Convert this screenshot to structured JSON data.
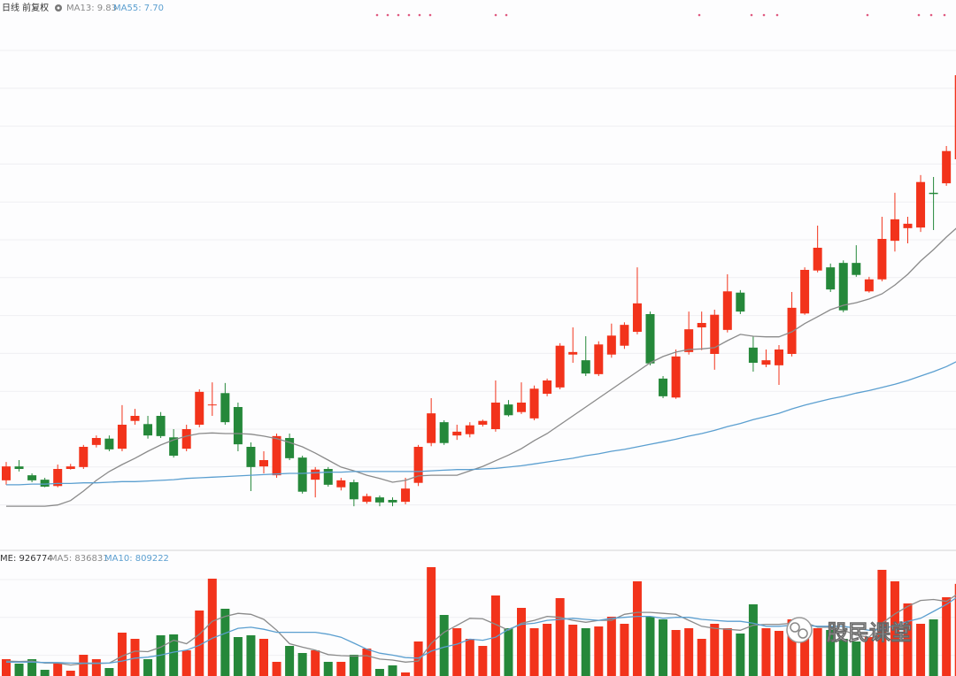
{
  "chart_data": [
    {
      "type": "candlestick",
      "title": "日线 前复权",
      "up_color": "#f2331b",
      "down_color": "#25883a",
      "ylim": [
        4.72,
        13.4
      ],
      "open": [
        5.8,
        6.02,
        5.88,
        5.81,
        5.71,
        5.98,
        6.01,
        6.36,
        6.46,
        6.3,
        6.74,
        6.69,
        6.82,
        6.48,
        6.3,
        6.68,
        6.99,
        7.18,
        6.96,
        6.33,
        6.02,
        5.88,
        6.47,
        6.16,
        5.81,
        5.98,
        5.69,
        5.77,
        5.46,
        5.53,
        5.49,
        5.46,
        5.76,
        6.39,
        6.72,
        6.51,
        6.53,
        6.68,
        6.61,
        7.0,
        6.88,
        6.78,
        7.17,
        7.27,
        7.79,
        7.7,
        7.48,
        7.79,
        7.93,
        8.15,
        8.43,
        7.41,
        7.11,
        7.83,
        8.22,
        7.8,
        8.18,
        8.77,
        7.9,
        7.63,
        7.62,
        7.8,
        8.44,
        9.12,
        9.17,
        9.24,
        9.24,
        8.79,
        8.98,
        9.59,
        9.79,
        9.8,
        10.35,
        10.5,
        10.88
      ],
      "high": [
        6.09,
        6.12,
        5.91,
        5.84,
        6.05,
        6.06,
        6.36,
        6.51,
        6.51,
        6.99,
        6.93,
        6.82,
        6.88,
        6.61,
        6.68,
        7.24,
        7.35,
        7.34,
        7.03,
        6.4,
        6.26,
        6.54,
        6.54,
        6.19,
        6.01,
        6.01,
        5.84,
        5.81,
        5.59,
        5.56,
        5.53,
        5.84,
        6.36,
        7.1,
        6.75,
        6.68,
        6.72,
        6.76,
        7.38,
        7.07,
        7.35,
        7.3,
        7.41,
        7.97,
        8.22,
        8.08,
        8.0,
        8.28,
        8.3,
        9.17,
        8.47,
        7.45,
        7.87,
        8.47,
        8.47,
        8.5,
        9.06,
        8.81,
        8.08,
        7.87,
        7.94,
        8.78,
        9.17,
        9.83,
        9.23,
        9.28,
        9.52,
        9.02,
        9.97,
        10.35,
        9.97,
        10.63,
        10.6,
        11.09,
        12.28
      ],
      "low": [
        5.73,
        5.94,
        5.77,
        5.69,
        5.69,
        5.97,
        5.98,
        6.32,
        6.26,
        6.26,
        6.68,
        6.46,
        6.47,
        6.16,
        6.26,
        6.64,
        6.82,
        6.68,
        6.26,
        5.63,
        5.91,
        5.84,
        6.12,
        5.59,
        5.53,
        5.7,
        5.64,
        5.39,
        5.43,
        5.39,
        5.39,
        5.42,
        5.71,
        6.34,
        6.36,
        6.44,
        6.48,
        6.65,
        6.57,
        6.81,
        6.85,
        6.75,
        7.13,
        7.24,
        7.66,
        7.45,
        7.45,
        7.74,
        7.88,
        8.11,
        7.62,
        7.1,
        7.09,
        7.79,
        7.86,
        7.55,
        8.14,
        8.43,
        7.52,
        7.59,
        7.31,
        7.76,
        8.42,
        9.09,
        8.78,
        8.46,
        9.02,
        8.77,
        8.95,
        9.42,
        9.55,
        9.73,
        9.76,
        10.46,
        10.85
      ],
      "close": [
        6.02,
        5.98,
        5.8,
        5.7,
        5.98,
        6.02,
        6.33,
        6.47,
        6.29,
        6.68,
        6.82,
        6.51,
        6.5,
        6.19,
        6.61,
        7.2,
        7.0,
        6.72,
        6.37,
        6.01,
        6.12,
        6.5,
        6.15,
        5.62,
        5.97,
        5.73,
        5.8,
        5.5,
        5.55,
        5.45,
        5.45,
        5.67,
        6.33,
        6.86,
        6.39,
        6.57,
        6.67,
        6.74,
        7.03,
        6.83,
        7.03,
        7.25,
        7.38,
        7.93,
        7.83,
        7.49,
        7.95,
        8.09,
        8.26,
        8.6,
        7.65,
        7.13,
        7.76,
        8.19,
        8.29,
        8.42,
        8.79,
        8.47,
        7.66,
        7.7,
        7.87,
        8.53,
        9.13,
        9.48,
        8.82,
        8.49,
        9.05,
        8.98,
        9.62,
        9.93,
        9.86,
        10.52,
        10.33,
        11.01,
        12.21
      ],
      "series": [
        {
          "name": "MA13: 9.83",
          "color": "#8a8a8a",
          "values": [
            5.39,
            5.39,
            5.39,
            5.39,
            5.41,
            5.48,
            5.63,
            5.8,
            5.94,
            6.05,
            6.15,
            6.26,
            6.36,
            6.44,
            6.5,
            6.54,
            6.55,
            6.54,
            6.54,
            6.53,
            6.5,
            6.46,
            6.4,
            6.33,
            6.23,
            6.12,
            6.01,
            5.95,
            5.88,
            5.83,
            5.77,
            5.8,
            5.87,
            5.88,
            5.88,
            5.88,
            5.95,
            6.02,
            6.11,
            6.2,
            6.3,
            6.43,
            6.54,
            6.68,
            6.82,
            6.96,
            7.1,
            7.24,
            7.38,
            7.52,
            7.66,
            7.76,
            7.83,
            7.87,
            7.88,
            7.9,
            8.01,
            8.11,
            8.08,
            8.07,
            8.07,
            8.15,
            8.28,
            8.39,
            8.5,
            8.57,
            8.61,
            8.67,
            8.75,
            8.89,
            9.06,
            9.27,
            9.45,
            9.65,
            9.83
          ]
        },
        {
          "name": "MA55: 7.70",
          "color": "#5b9fd0",
          "values": [
            5.73,
            5.73,
            5.74,
            5.74,
            5.75,
            5.75,
            5.76,
            5.76,
            5.77,
            5.78,
            5.78,
            5.79,
            5.8,
            5.81,
            5.83,
            5.84,
            5.85,
            5.86,
            5.87,
            5.88,
            5.89,
            5.9,
            5.91,
            5.91,
            5.92,
            5.93,
            5.93,
            5.94,
            5.94,
            5.94,
            5.94,
            5.94,
            5.94,
            5.95,
            5.96,
            5.97,
            5.97,
            5.98,
            5.99,
            6.01,
            6.03,
            6.06,
            6.09,
            6.12,
            6.15,
            6.19,
            6.22,
            6.26,
            6.29,
            6.33,
            6.37,
            6.41,
            6.45,
            6.5,
            6.54,
            6.59,
            6.65,
            6.7,
            6.76,
            6.81,
            6.86,
            6.93,
            6.99,
            7.04,
            7.09,
            7.13,
            7.18,
            7.22,
            7.27,
            7.32,
            7.38,
            7.45,
            7.52,
            7.6,
            7.7
          ]
        }
      ]
    },
    {
      "type": "bar",
      "ylim": [
        0,
        1103600
      ],
      "series": [
        {
          "name": "ME: 926774",
          "values": [
            169100,
            124600,
            169100,
            62300,
            124600,
            53400,
            213600,
            169100,
            80100,
            436100,
            373800,
            169100,
            409400,
            418300,
            258100,
            658600,
            979000,
            676400,
            391600,
            409400,
            373800,
            142400,
            302600,
            231400,
            258100,
            142400,
            142400,
            213600,
            275900,
            71200,
            106800,
            35600,
            347100,
            1094700,
            614100,
            480600,
            373800,
            302600,
            809900,
            480600,
            685300,
            480600,
            525100,
            783200,
            516200,
            480600,
            498400,
            596300,
            525100,
            952300,
            596300,
            569600,
            462800,
            480600,
            373800,
            525100,
            480600,
            427200,
            720900,
            480600,
            453900,
            569600,
            480600,
            480600,
            462800,
            373800,
            347100,
            391600,
            1068000,
            952300,
            729800,
            525100,
            569600,
            792100,
            926774
          ]
        },
        {
          "name": "MA5: 836831",
          "color": "#8a8a8a",
          "values": [
            150000,
            145000,
            150000,
            130000,
            130000,
            110000,
            125000,
            125000,
            130000,
            200000,
            250000,
            245000,
            290000,
            360000,
            325000,
            420000,
            550000,
            600000,
            630000,
            620000,
            570000,
            460000,
            325000,
            290000,
            260000,
            215000,
            205000,
            200000,
            205000,
            170000,
            160000,
            140000,
            150000,
            330000,
            440000,
            510000,
            580000,
            575000,
            520000,
            460000,
            530000,
            560000,
            600000,
            590000,
            560000,
            540000,
            560000,
            560000,
            620000,
            640000,
            640000,
            630000,
            620000,
            560000,
            500000,
            480000,
            470000,
            460000,
            510000,
            520000,
            520000,
            530000,
            540000,
            490000,
            490000,
            460000,
            410000,
            390000,
            530000,
            625000,
            700000,
            760000,
            770000,
            750000,
            836831
          ]
        },
        {
          "name": "MA10: 809222",
          "color": "#5b9fd0",
          "values": [
            140000,
            140000,
            140000,
            135000,
            135000,
            130000,
            130000,
            130000,
            130000,
            150000,
            180000,
            190000,
            210000,
            240000,
            260000,
            310000,
            380000,
            430000,
            480000,
            490000,
            470000,
            440000,
            440000,
            440000,
            440000,
            420000,
            390000,
            330000,
            270000,
            230000,
            210000,
            185000,
            180000,
            250000,
            290000,
            320000,
            370000,
            360000,
            390000,
            470000,
            520000,
            530000,
            560000,
            570000,
            580000,
            570000,
            560000,
            580000,
            590000,
            600000,
            600000,
            580000,
            590000,
            590000,
            570000,
            560000,
            550000,
            550000,
            530000,
            500000,
            500000,
            510000,
            510000,
            500000,
            500000,
            500000,
            480000,
            460000,
            470000,
            510000,
            550000,
            580000,
            650000,
            720000,
            809222
          ]
        }
      ]
    }
  ],
  "watermark": "股民课堂"
}
